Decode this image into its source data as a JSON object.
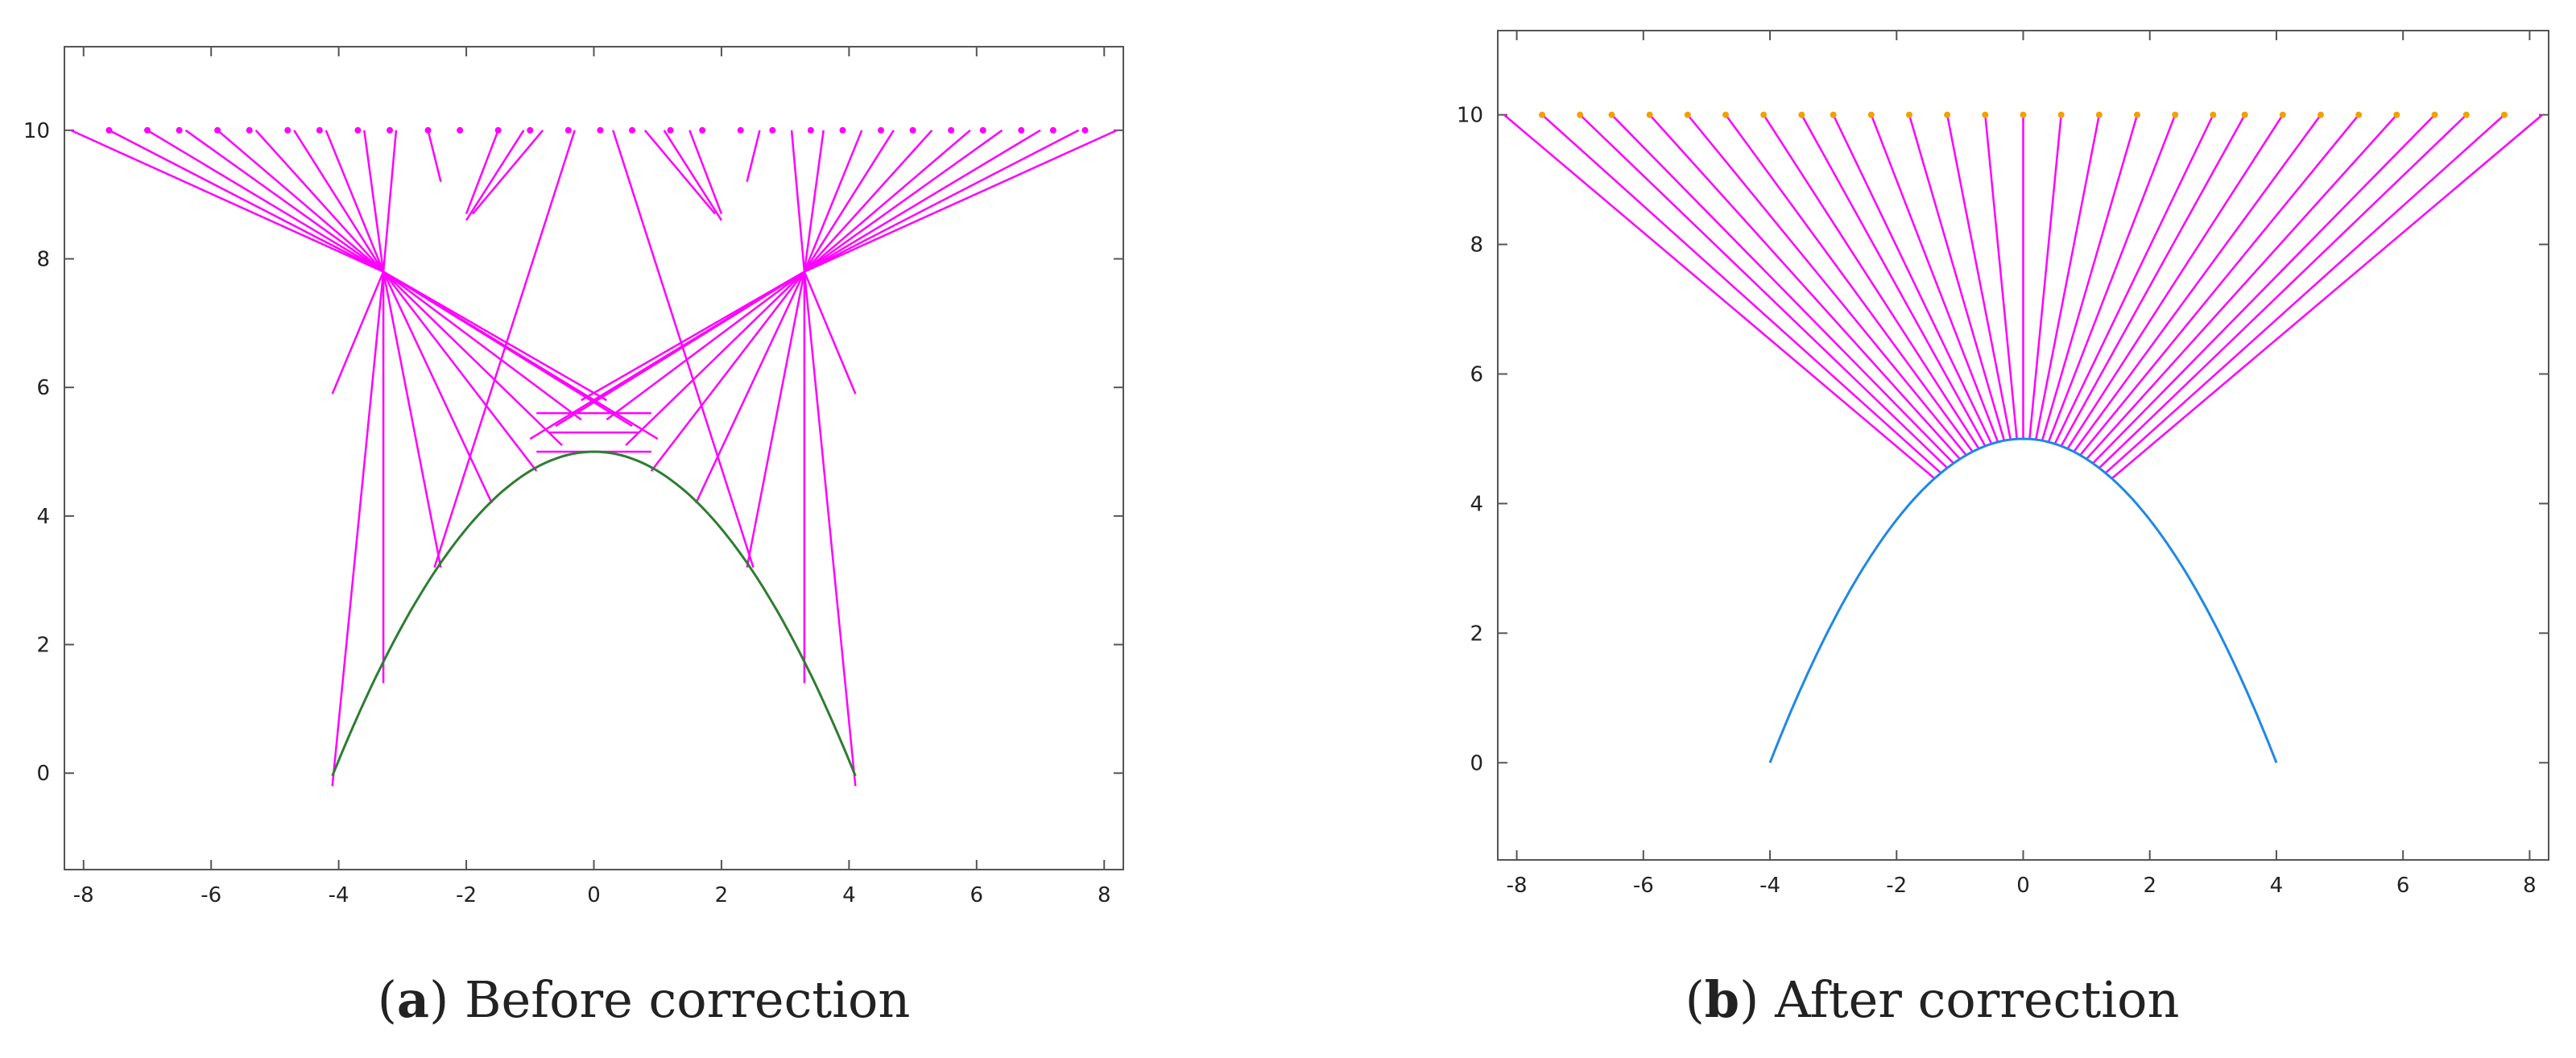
{
  "colors": {
    "ray": "#ff00ff",
    "curve_a": "#2e7d32",
    "curve_b": "#1e88e5",
    "marker_b": "#f2a000",
    "frame": "#555555"
  },
  "chart_data": [
    {
      "type": "line",
      "panel": "a",
      "caption_letter": "a",
      "caption_text": " Before correction",
      "xlim": [
        -8.3,
        8.3
      ],
      "ylim": [
        -1.5,
        11.3
      ],
      "xticks": [
        -8,
        -6,
        -4,
        -2,
        0,
        2,
        4,
        6,
        8
      ],
      "yticks": [
        0,
        2,
        4,
        6,
        8,
        10
      ],
      "grid": false,
      "series": [
        {
          "name": "surface",
          "kind": "curve",
          "function": "y = 5 - 0.3*x^2",
          "x_range": [
            -4.1,
            4.1
          ]
        },
        {
          "name": "rays",
          "kind": "segments",
          "segments": [
            [
              -8.2,
              10,
              -3.3,
              7.8
            ],
            [
              -7.6,
              10,
              -3.3,
              7.8
            ],
            [
              -7.0,
              10,
              -3.3,
              7.8
            ],
            [
              -6.4,
              10,
              -3.3,
              7.8
            ],
            [
              -5.9,
              10,
              -3.3,
              7.8
            ],
            [
              -5.3,
              10,
              -3.3,
              7.8
            ],
            [
              -4.7,
              10,
              -3.3,
              7.8
            ],
            [
              -4.2,
              10,
              -3.3,
              7.8
            ],
            [
              -3.6,
              10,
              -3.3,
              7.8
            ],
            [
              -3.1,
              10,
              -3.3,
              7.8
            ],
            [
              8.2,
              10,
              3.3,
              7.8
            ],
            [
              7.6,
              10,
              3.3,
              7.8
            ],
            [
              7.0,
              10,
              3.3,
              7.8
            ],
            [
              6.4,
              10,
              3.3,
              7.8
            ],
            [
              5.9,
              10,
              3.3,
              7.8
            ],
            [
              5.3,
              10,
              3.3,
              7.8
            ],
            [
              4.7,
              10,
              3.3,
              7.8
            ],
            [
              4.2,
              10,
              3.3,
              7.8
            ],
            [
              3.6,
              10,
              3.3,
              7.8
            ],
            [
              3.1,
              10,
              3.3,
              7.8
            ],
            [
              -3.3,
              7.8,
              -2.4,
              3.2
            ],
            [
              -3.3,
              7.8,
              -1.6,
              4.2
            ],
            [
              -3.3,
              7.8,
              -0.9,
              4.7
            ],
            [
              -3.3,
              7.8,
              -0.5,
              5.1
            ],
            [
              -3.3,
              7.8,
              -0.2,
              5.5
            ],
            [
              -3.3,
              7.8,
              0.2,
              5.8
            ],
            [
              -3.3,
              7.8,
              0.6,
              5.4
            ],
            [
              -3.3,
              7.8,
              1.0,
              5.2
            ],
            [
              -3.3,
              7.8,
              -3.3,
              1.4
            ],
            [
              -3.3,
              7.8,
              -4.1,
              -0.2
            ],
            [
              -3.3,
              7.8,
              -4.1,
              5.9
            ],
            [
              3.3,
              7.8,
              2.4,
              3.2
            ],
            [
              3.3,
              7.8,
              1.6,
              4.2
            ],
            [
              3.3,
              7.8,
              0.9,
              4.7
            ],
            [
              3.3,
              7.8,
              0.5,
              5.1
            ],
            [
              3.3,
              7.8,
              0.2,
              5.5
            ],
            [
              3.3,
              7.8,
              -0.2,
              5.8
            ],
            [
              3.3,
              7.8,
              -0.6,
              5.4
            ],
            [
              3.3,
              7.8,
              -1.0,
              5.2
            ],
            [
              3.3,
              7.8,
              3.3,
              1.4
            ],
            [
              3.3,
              7.8,
              4.1,
              -0.2
            ],
            [
              3.3,
              7.8,
              4.1,
              5.9
            ],
            [
              -0.3,
              10,
              -2.5,
              3.2
            ],
            [
              0.3,
              10,
              2.5,
              3.2
            ],
            [
              -2.6,
              10,
              -2.4,
              9.2
            ],
            [
              -1.5,
              10,
              -2.0,
              8.7
            ],
            [
              -0.8,
              10,
              -1.9,
              8.7
            ],
            [
              2.6,
              10,
              2.4,
              9.2
            ],
            [
              1.5,
              10,
              2.0,
              8.7
            ],
            [
              0.8,
              10,
              1.9,
              8.7
            ],
            [
              -1.1,
              10,
              -2.0,
              8.6
            ],
            [
              1.1,
              10,
              2.0,
              8.6
            ],
            [
              -0.9,
              5.6,
              0.9,
              5.6
            ],
            [
              -0.7,
              5.3,
              0.7,
              5.3
            ],
            [
              -0.9,
              5.0,
              0.9,
              5.0
            ]
          ]
        },
        {
          "name": "sources",
          "kind": "markers",
          "x": [
            -7.6,
            -7.0,
            -6.5,
            -5.9,
            -5.4,
            -4.8,
            -4.3,
            -3.7,
            -3.2,
            -2.6,
            -2.1,
            -1.5,
            -1.0,
            -0.4,
            0.1,
            0.6,
            1.2,
            1.7,
            2.3,
            2.8,
            3.4,
            3.9,
            4.5,
            5.0,
            5.6,
            6.1,
            6.7,
            7.2,
            7.7
          ],
          "y": 10
        }
      ]
    },
    {
      "type": "line",
      "panel": "b",
      "caption_letter": "b",
      "caption_text": " After correction",
      "xlim": [
        -8.3,
        8.3
      ],
      "ylim": [
        -1.5,
        11.3
      ],
      "xticks": [
        -8,
        -6,
        -4,
        -2,
        0,
        2,
        4,
        6,
        8
      ],
      "yticks": [
        0,
        2,
        4,
        6,
        8,
        10
      ],
      "grid": false,
      "series": [
        {
          "name": "surface",
          "kind": "curve",
          "function": "y = 5 - 0.3125*x^2",
          "x_range": [
            -4,
            4
          ]
        },
        {
          "name": "rays",
          "kind": "fan",
          "start_x": [
            -8.2,
            -7.6,
            -7.0,
            -6.5,
            -5.9,
            -5.3,
            -4.7,
            -4.1,
            -3.5,
            -3.0,
            -2.4,
            -1.8,
            -1.2,
            -0.6,
            0.0,
            0.6,
            1.2,
            1.8,
            2.4,
            3.0,
            3.5,
            4.1,
            4.7,
            5.3,
            5.9,
            6.5,
            7.0,
            7.6,
            8.2
          ],
          "start_y": 10,
          "end_x_range": [
            -1.4,
            1.4
          ]
        },
        {
          "name": "sources",
          "kind": "markers",
          "x": [
            -7.6,
            -7.0,
            -6.5,
            -5.9,
            -5.3,
            -4.7,
            -4.1,
            -3.5,
            -3.0,
            -2.4,
            -1.8,
            -1.2,
            -0.6,
            0.0,
            0.6,
            1.2,
            1.8,
            2.4,
            3.0,
            3.5,
            4.1,
            4.7,
            5.3,
            5.9,
            6.5,
            7.0,
            7.6
          ],
          "y": 10
        }
      ]
    }
  ]
}
